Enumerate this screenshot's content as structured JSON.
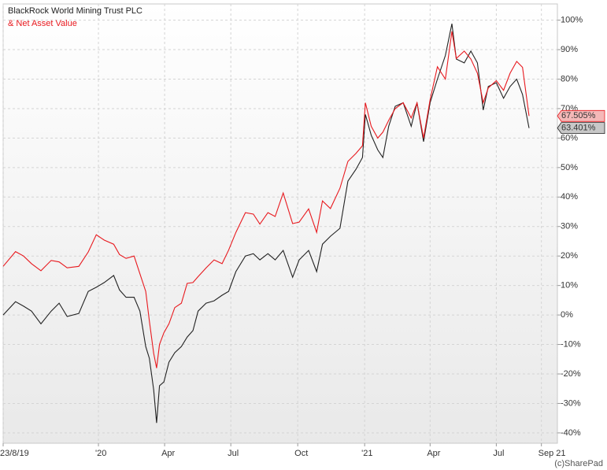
{
  "chart_data": {
    "type": "line",
    "legend_position": "upper left",
    "watermark": "(c)SharePad",
    "grid": true,
    "y_axis_side": "right",
    "x": [
      0,
      17,
      28,
      39,
      52,
      66,
      77,
      88,
      104,
      117,
      128,
      139,
      152,
      160,
      169,
      180,
      188,
      196,
      201,
      207,
      211,
      215,
      221,
      228,
      236,
      245,
      253,
      261,
      268,
      279,
      290,
      301,
      310,
      320,
      333,
      344,
      353,
      364,
      374,
      385,
      398,
      407,
      420,
      431,
      439,
      450,
      463,
      474,
      485,
      494,
      498,
      506,
      515,
      522,
      530,
      539,
      550,
      561,
      569,
      578,
      587,
      597,
      608,
      617,
      623,
      634,
      643,
      652,
      660,
      667,
      678,
      688,
      697,
      706,
      714,
      723
    ],
    "xlim": [
      0,
      762
    ],
    "xticks": [
      {
        "value": 0,
        "label": "23/8/19"
      },
      {
        "value": 131,
        "label": "'20"
      },
      {
        "value": 222,
        "label": "Apr"
      },
      {
        "value": 313,
        "label": "Jul"
      },
      {
        "value": 405,
        "label": "Oct"
      },
      {
        "value": 497,
        "label": "'21"
      },
      {
        "value": 587,
        "label": "Apr"
      },
      {
        "value": 678,
        "label": "Jul"
      },
      {
        "value": 740,
        "label": "Sep 21"
      }
    ],
    "ylim": [
      -43.5,
      105.5
    ],
    "yticks": [
      {
        "value": -40,
        "label": "-40%"
      },
      {
        "value": -30,
        "label": "-30%"
      },
      {
        "value": -20,
        "label": "-20%"
      },
      {
        "value": -10,
        "label": "-10%"
      },
      {
        "value": 0,
        "label": "0%"
      },
      {
        "value": 10,
        "label": "10%"
      },
      {
        "value": 20,
        "label": "20%"
      },
      {
        "value": 30,
        "label": "30%"
      },
      {
        "value": 40,
        "label": "40%"
      },
      {
        "value": 50,
        "label": "50%"
      },
      {
        "value": 60,
        "label": "60%"
      },
      {
        "value": 70,
        "label": "70%"
      },
      {
        "value": 80,
        "label": "80%"
      },
      {
        "value": 90,
        "label": "90%"
      },
      {
        "value": 100,
        "label": "100%"
      }
    ],
    "series": [
      {
        "name": "BlackRock World Mining Trust PLC",
        "color": "#222222",
        "label_fill": "#c8c8c8",
        "end_label": "63.401%",
        "values": [
          0,
          4.5,
          3,
          1.3,
          -3,
          1.3,
          4,
          -0.5,
          0.5,
          8,
          9.4,
          11,
          13.4,
          8.5,
          6,
          6,
          1.3,
          -10.7,
          -14.7,
          -25.4,
          -36.6,
          -24,
          -22.7,
          -16,
          -12.8,
          -10.7,
          -7.5,
          -5.3,
          1.3,
          4,
          4.8,
          6.7,
          8,
          14.7,
          20,
          20.8,
          18.7,
          20.8,
          18.7,
          21.9,
          12.8,
          18.7,
          21.9,
          14.7,
          24,
          26.7,
          29.4,
          45.4,
          49.4,
          53.4,
          68,
          61,
          56,
          53.4,
          64,
          70.8,
          72,
          64,
          72,
          58.8,
          72,
          80,
          88,
          98.8,
          86.8,
          85.5,
          89.5,
          85.5,
          69.5,
          77.5,
          78.8,
          73.5,
          77.5,
          80,
          74.8,
          63.401
        ]
      },
      {
        "name": "& Net Asset Value",
        "color": "#e8191e",
        "label_fill": "#f5b8b8",
        "end_label": "67.505%",
        "values": [
          16.5,
          21.5,
          20,
          17.4,
          15,
          18.5,
          18,
          16,
          16.5,
          21.4,
          27.2,
          25.4,
          24,
          20.5,
          19.2,
          20,
          14,
          8,
          -2,
          -13,
          -18,
          -10,
          -6,
          -3,
          2.5,
          4,
          10.7,
          11,
          13,
          16,
          18.7,
          17.4,
          22,
          28,
          34.7,
          34.2,
          30.8,
          34.7,
          33.4,
          41.4,
          31,
          31.5,
          36,
          28,
          38.7,
          36.1,
          43,
          52.1,
          54.8,
          57.4,
          72,
          64,
          60,
          62,
          66,
          70,
          72,
          66.8,
          72,
          60,
          73,
          84.2,
          80,
          96.2,
          87,
          89.5,
          86.8,
          82,
          72,
          77,
          79.5,
          76.2,
          82,
          86,
          84,
          67.505
        ]
      }
    ]
  }
}
